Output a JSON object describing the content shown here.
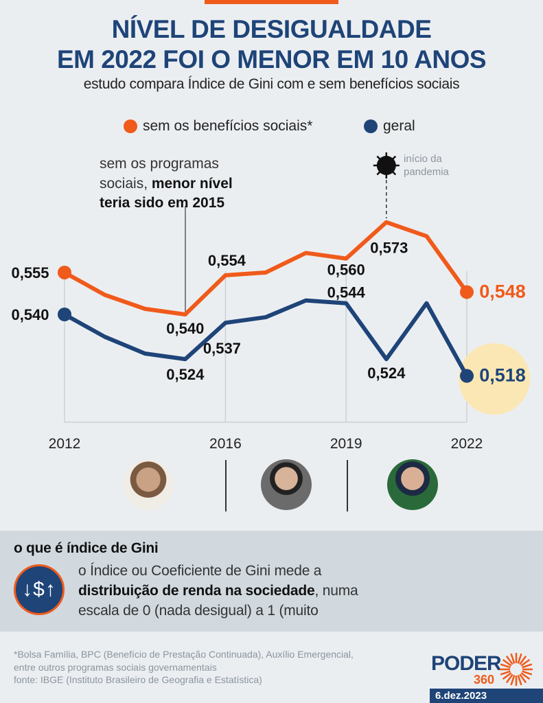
{
  "header": {
    "title_line1": "NÍVEL DE DESIGUALDADE",
    "title_line2": "EM 2022 FOI O MENOR EM 10 ANOS",
    "subtitle": "estudo compara Índice de Gini com e sem benefícios sociais"
  },
  "chart_data": {
    "type": "line",
    "x": [
      2012,
      2013,
      2014,
      2015,
      2016,
      2017,
      2018,
      2019,
      2020,
      2021,
      2022
    ],
    "x_tick_labels": [
      "2012",
      "2016",
      "2019",
      "2022"
    ],
    "series": [
      {
        "name": "sem os benefícios sociais*",
        "color": "#f05a1a",
        "values": [
          0.555,
          0.547,
          0.542,
          0.54,
          0.554,
          0.555,
          0.562,
          0.56,
          0.573,
          0.568,
          0.548
        ],
        "labels": {
          "0": "0,555",
          "3": "0,540",
          "4": "0,554",
          "7": "0,560",
          "8": "0,573",
          "10": "0,548"
        }
      },
      {
        "name": "geral",
        "color": "#1e4478",
        "values": [
          0.54,
          0.532,
          0.526,
          0.524,
          0.537,
          0.539,
          0.545,
          0.544,
          0.524,
          0.544,
          0.518
        ],
        "labels": {
          "0": "0,540",
          "3": "0,524",
          "4": "0,537",
          "7": "0,544",
          "8": "0,524",
          "10": "0,518"
        }
      }
    ],
    "legend_placement": "top",
    "highlight_color": "#fbe7b3",
    "annotations": {
      "min_note_regular": "sem os programas sociais,",
      "min_note_bold1": "menor nível",
      "min_note_bold2": "teria sido em 2015",
      "pandemic": [
        "início da",
        "pandemia"
      ]
    },
    "icons": [
      "virus-icon"
    ]
  },
  "gini": {
    "heading": "o que é índice de Gini",
    "icon": "money-up-down-icon",
    "icon_text": "↓$↑",
    "line1": "o Índice ou Coeficiente de Gini mede a",
    "bold": "distribuição de renda na sociedade",
    "line2_rest": ", numa",
    "line3": "escala de 0 (nada desigual) a 1 (muito"
  },
  "footer": {
    "note1": "*Bolsa Família, BPC (Benefício de Prestação Continuada), Auxílio Emergencial,",
    "note2": "entre outros programas sociais governamentais",
    "source": "fonte: IBGE (Instituto Brasileiro de Geografia e Estatística)",
    "logo": "PODER",
    "logo_sub": "360",
    "date": "6.dez.2023"
  }
}
